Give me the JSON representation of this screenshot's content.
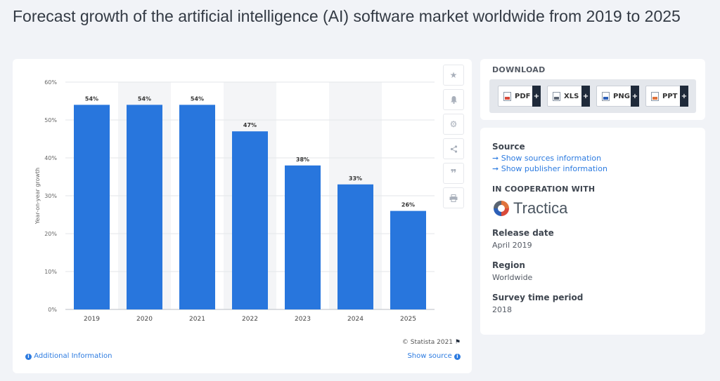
{
  "page": {
    "title": "Forecast growth of the artificial intelligence (AI) software market worldwide from 2019 to 2025"
  },
  "chart_data": {
    "type": "bar",
    "categories": [
      "2019",
      "2020",
      "2021",
      "2022",
      "2023",
      "2024",
      "2025"
    ],
    "values": [
      54,
      54,
      54,
      47,
      38,
      33,
      26
    ],
    "value_labels": [
      "54%",
      "54%",
      "54%",
      "47%",
      "38%",
      "33%",
      "26%"
    ],
    "ylabel": "Year-on-year growth",
    "xlabel": "",
    "ylim": [
      0,
      60
    ],
    "yticks": [
      0,
      10,
      20,
      30,
      40,
      50,
      60
    ],
    "ytick_labels": [
      "0%",
      "10%",
      "20%",
      "30%",
      "40%",
      "50%",
      "60%"
    ],
    "shaded_categories": [
      "2020",
      "2022",
      "2024"
    ],
    "bar_color": "#2876dd",
    "shade_color": "#f4f5f7",
    "grid": true
  },
  "chart_card": {
    "copyright": "© Statista 2021",
    "additional_info": "Additional Information",
    "show_source": "Show source",
    "tools": [
      "star-icon",
      "bell-icon",
      "gear-icon",
      "share-icon",
      "quote-icon",
      "print-icon"
    ]
  },
  "download": {
    "title": "DOWNLOAD",
    "buttons": [
      {
        "label": "PDF",
        "icon": "pdf-file-icon"
      },
      {
        "label": "XLS",
        "icon": "xls-file-icon"
      },
      {
        "label": "PNG",
        "icon": "png-file-icon"
      },
      {
        "label": "PPT",
        "icon": "ppt-file-icon"
      }
    ],
    "plus": "+"
  },
  "info": {
    "source_heading": "Source",
    "sources_link": "Show sources information",
    "publisher_link": "Show publisher information",
    "arrow": "➞",
    "coop_heading": "IN COOPERATION WITH",
    "coop_name": "Tractica",
    "release_heading": "Release date",
    "release_value": "April 2019",
    "region_heading": "Region",
    "region_value": "Worldwide",
    "survey_heading": "Survey time period",
    "survey_value": "2018"
  },
  "colors": {
    "accent": "#2c7be0",
    "background": "#f1f3f7"
  }
}
